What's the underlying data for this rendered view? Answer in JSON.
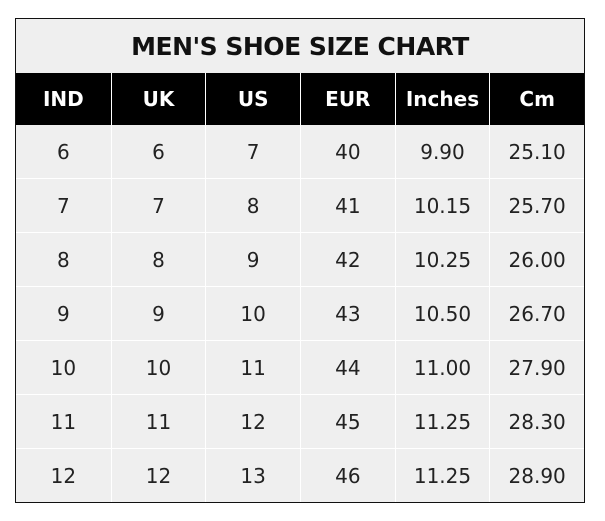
{
  "title": "MEN'S SHOE SIZE CHART",
  "columns": [
    "IND",
    "UK",
    "US",
    "EUR",
    "Inches",
    "Cm"
  ],
  "rows": [
    [
      "6",
      "6",
      "7",
      "40",
      "9.90",
      "25.10"
    ],
    [
      "7",
      "7",
      "8",
      "41",
      "10.15",
      "25.70"
    ],
    [
      "8",
      "8",
      "9",
      "42",
      "10.25",
      "26.00"
    ],
    [
      "9",
      "9",
      "10",
      "43",
      "10.50",
      "26.70"
    ],
    [
      "10",
      "10",
      "11",
      "44",
      "11.00",
      "27.90"
    ],
    [
      "11",
      "11",
      "12",
      "45",
      "11.25",
      "28.30"
    ],
    [
      "12",
      "12",
      "13",
      "46",
      "11.25",
      "28.90"
    ]
  ],
  "colors": {
    "header_bg": "#000000",
    "cell_bg": "#efefef",
    "grid": "#ffffff"
  }
}
